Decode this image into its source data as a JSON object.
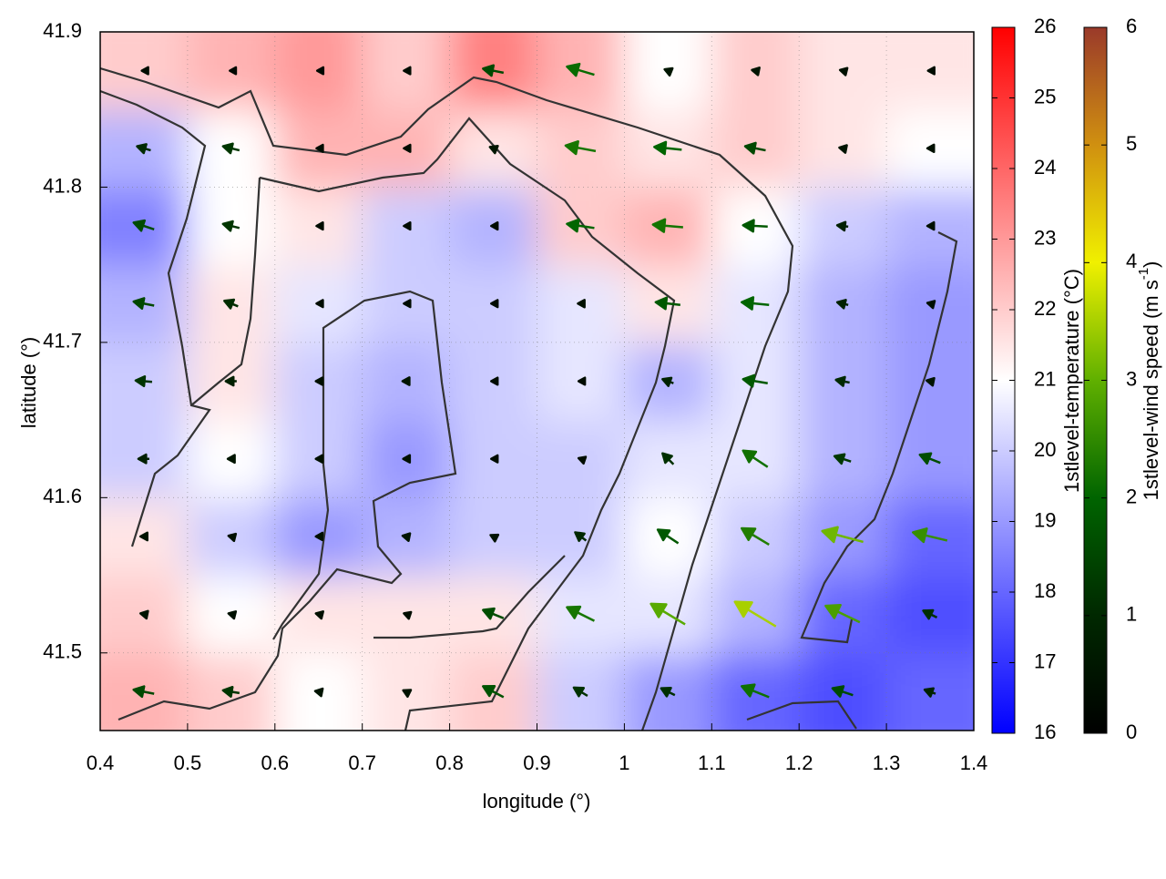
{
  "chart_data": {
    "type": "heatmap-vector",
    "xlabel": "longitude (°)",
    "ylabel": "latitude (°)",
    "xlim": [
      0.4,
      1.4
    ],
    "ylim": [
      41.45,
      41.9
    ],
    "xticks": [
      0.4,
      0.5,
      0.6,
      0.7,
      0.8,
      0.9,
      1.0,
      1.1,
      1.2,
      1.3,
      1.4
    ],
    "yticks": [
      41.5,
      41.6,
      41.7,
      41.8,
      41.9
    ],
    "grid": true,
    "temperature": {
      "label": "1stlevel-temperature (°C)",
      "cblim": [
        16,
        26
      ],
      "cbticks": [
        16,
        17,
        18,
        19,
        20,
        21,
        22,
        23,
        24,
        25,
        26
      ],
      "colors": [
        "#0000ff",
        "#ffffff",
        "#ff0000"
      ],
      "lon": [
        0.45,
        0.55,
        0.65,
        0.75,
        0.85,
        0.95,
        1.05,
        1.15,
        1.25,
        1.35
      ],
      "lat": [
        41.475,
        41.525,
        41.575,
        41.625,
        41.675,
        41.725,
        41.775,
        41.825,
        41.875
      ],
      "values": [
        [
          22.5,
          22,
          21,
          21.5,
          22,
          20,
          19,
          18,
          17.5,
          18
        ],
        [
          22,
          21,
          21.5,
          21.5,
          21.5,
          20.5,
          20.5,
          19.5,
          18,
          17.5
        ],
        [
          21.5,
          20,
          19,
          19.5,
          20,
          20,
          21,
          20,
          19,
          18
        ],
        [
          20,
          21,
          20,
          19,
          20,
          20,
          20.5,
          20.5,
          19.5,
          19
        ],
        [
          20,
          21.5,
          20,
          19.5,
          20,
          20.5,
          19.5,
          20.5,
          19.5,
          19
        ],
        [
          19.5,
          21.5,
          20.5,
          20,
          20,
          20.5,
          21.5,
          20.5,
          19.5,
          19
        ],
        [
          18.5,
          21,
          21.5,
          20,
          19.5,
          22,
          22.5,
          21,
          20,
          19.5
        ],
        [
          19.5,
          21,
          22.5,
          22.5,
          21.5,
          22,
          21.5,
          22,
          21.5,
          21
        ],
        [
          22,
          22.5,
          23,
          22,
          23.5,
          22.5,
          21,
          22,
          21.5,
          21.5
        ]
      ]
    },
    "wind": {
      "label": [
        "1stlevel-wind speed (m s",
        "-1",
        ")"
      ],
      "cblim": [
        0,
        6
      ],
      "cbticks": [
        0,
        1,
        2,
        3,
        4,
        5,
        6
      ],
      "colors": [
        "#000000",
        "#002800",
        "#006400",
        "#60b000",
        "#f0f000",
        "#d09010",
        "#9a3a2a"
      ],
      "u": [
        [
          -1.5,
          -1.2,
          -0.5,
          -0.4,
          -1.5,
          -1,
          -1,
          -2,
          -1.5,
          -0.8
        ],
        [
          -0.5,
          -0.4,
          -0.4,
          -0.3,
          -1.5,
          -2,
          -2.5,
          -3,
          -2.5,
          -1
        ],
        [
          -0.5,
          -0.4,
          -0.4,
          -0.5,
          -0.4,
          -0.8,
          -1.5,
          -2,
          -3,
          -2.5
        ],
        [
          -0.8,
          -0.5,
          -0.4,
          -0.4,
          -0.3,
          -0.3,
          -0.8,
          -1.8,
          -1.2,
          -1.5
        ],
        [
          -1.2,
          -0.8,
          -0.4,
          -0.5,
          -0.3,
          -0.3,
          -0.8,
          -1.8,
          -1,
          -0.5
        ],
        [
          -1.5,
          -1,
          -0.3,
          -0.3,
          -0.3,
          -0.4,
          -1.8,
          -2,
          -0.8,
          -0.4
        ],
        [
          -1.5,
          -1.2,
          -0.3,
          -0.3,
          -0.3,
          -2,
          -2.2,
          -1.8,
          -0.8,
          -0.4
        ],
        [
          -1,
          -1.2,
          -0.3,
          -0.3,
          -0.5,
          -2.2,
          -2,
          -1.5,
          -0.5,
          -0.4
        ],
        [
          -0.3,
          -0.2,
          -0.2,
          -0.3,
          -1.5,
          -2,
          -0.5,
          -0.5,
          -0.4,
          -0.3
        ]
      ],
      "v": [
        [
          0.3,
          0.2,
          0.1,
          0.2,
          0.8,
          0.6,
          0.5,
          0.8,
          0.5,
          0.3
        ],
        [
          0.1,
          0.1,
          0.1,
          0.1,
          0.6,
          1,
          1.5,
          1.8,
          1.2,
          0.5
        ],
        [
          0,
          0.1,
          0,
          0.1,
          0.2,
          0.6,
          1,
          1.2,
          0.8,
          0.6
        ],
        [
          0,
          0,
          0,
          0,
          0,
          0.1,
          0.8,
          1.2,
          0.4,
          0.6
        ],
        [
          0.1,
          0,
          0,
          0,
          0,
          0,
          0.3,
          0.3,
          0.2,
          0.1
        ],
        [
          0.3,
          0.4,
          0,
          0,
          0,
          0,
          0.2,
          0.2,
          0.2,
          0.1
        ],
        [
          0.5,
          0.3,
          0,
          0,
          0,
          0.3,
          0.2,
          0.1,
          0.1,
          0
        ],
        [
          0.3,
          0.3,
          0,
          0,
          0.2,
          0.4,
          0.2,
          0.3,
          0.1,
          0
        ],
        [
          0,
          0,
          0,
          0,
          0.3,
          0.6,
          0.2,
          0.1,
          0.1,
          0
        ]
      ]
    }
  }
}
